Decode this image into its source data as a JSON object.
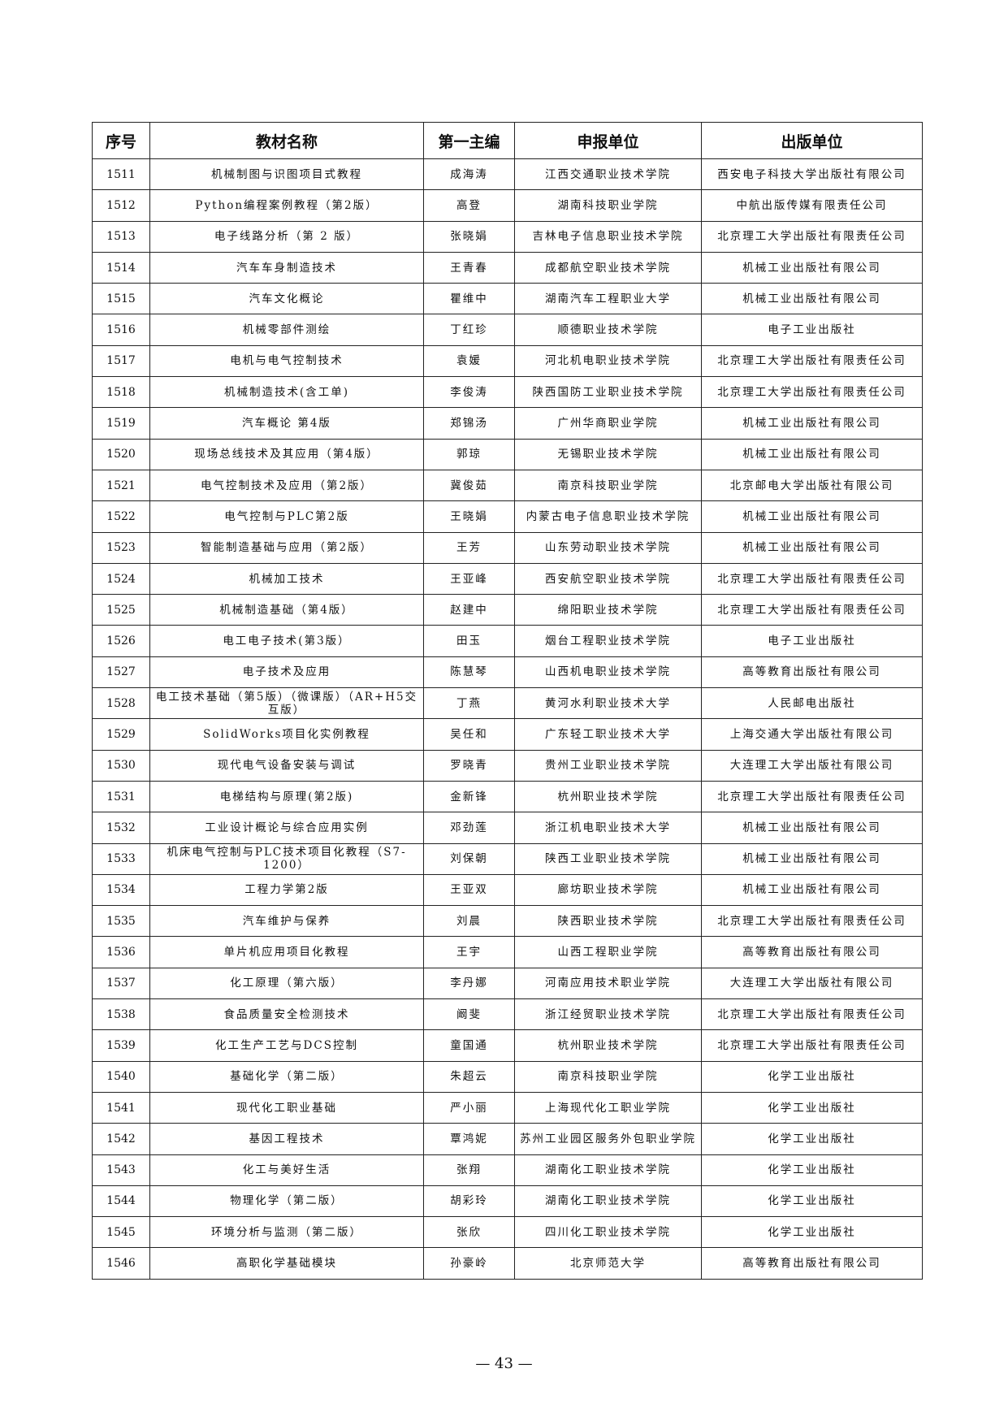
{
  "headers": [
    "序号",
    "教材名称",
    "第一主编",
    "申报单位",
    "出版单位"
  ],
  "rows": [
    [
      "1511",
      "机械制图与识图项目式教程",
      "成海涛",
      "江西交通职业技术学院",
      "西安电子科技大学出版社有限公司"
    ],
    [
      "1512",
      "Python编程案例教程（第2版）",
      "高登",
      "湖南科技职业学院",
      "中航出版传媒有限责任公司"
    ],
    [
      "1513",
      "电子线路分析（第 2 版）",
      "张晓娟",
      "吉林电子信息职业技术学院",
      "北京理工大学出版社有限责任公司"
    ],
    [
      "1514",
      "汽车车身制造技术",
      "王青春",
      "成都航空职业技术学院",
      "机械工业出版社有限公司"
    ],
    [
      "1515",
      "汽车文化概论",
      "瞿维中",
      "湖南汽车工程职业大学",
      "机械工业出版社有限公司"
    ],
    [
      "1516",
      "机械零部件测绘",
      "丁红珍",
      "顺德职业技术学院",
      "电子工业出版社"
    ],
    [
      "1517",
      "电机与电气控制技术",
      "袁媛",
      "河北机电职业技术学院",
      "北京理工大学出版社有限责任公司"
    ],
    [
      "1518",
      "机械制造技术(含工单)",
      "李俊涛",
      "陕西国防工业职业技术学院",
      "北京理工大学出版社有限责任公司"
    ],
    [
      "1519",
      "汽车概论 第4版",
      "郑锦汤",
      "广州华商职业学院",
      "机械工业出版社有限公司"
    ],
    [
      "1520",
      "现场总线技术及其应用（第4版）",
      "郭琼",
      "无锡职业技术学院",
      "机械工业出版社有限公司"
    ],
    [
      "1521",
      "电气控制技术及应用（第2版）",
      "冀俊茹",
      "南京科技职业学院",
      "北京邮电大学出版社有限公司"
    ],
    [
      "1522",
      "电气控制与PLC第2版",
      "王晓娟",
      "内蒙古电子信息职业技术学院",
      "机械工业出版社有限公司"
    ],
    [
      "1523",
      "智能制造基础与应用（第2版）",
      "王芳",
      "山东劳动职业技术学院",
      "机械工业出版社有限公司"
    ],
    [
      "1524",
      "机械加工技术",
      "王亚峰",
      "西安航空职业技术学院",
      "北京理工大学出版社有限责任公司"
    ],
    [
      "1525",
      "机械制造基础（第4版）",
      "赵建中",
      "绵阳职业技术学院",
      "北京理工大学出版社有限责任公司"
    ],
    [
      "1526",
      "电工电子技术(第3版）",
      "田玉",
      "烟台工程职业技术学院",
      "电子工业出版社"
    ],
    [
      "1527",
      "电子技术及应用",
      "陈慧琴",
      "山西机电职业技术学院",
      "高等教育出版社有限公司"
    ],
    [
      "1528",
      "电工技术基础（第5版）（微课版）（AR+H5交互版）",
      "丁燕",
      "黄河水利职业技术大学",
      "人民邮电出版社"
    ],
    [
      "1529",
      "SolidWorks项目化实例教程",
      "吴任和",
      "广东轻工职业技术大学",
      "上海交通大学出版社有限公司"
    ],
    [
      "1530",
      "现代电气设备安装与调试",
      "罗晓青",
      "贵州工业职业技术学院",
      "大连理工大学出版社有限公司"
    ],
    [
      "1531",
      "电梯结构与原理(第2版)",
      "金新锋",
      "杭州职业技术学院",
      "北京理工大学出版社有限责任公司"
    ],
    [
      "1532",
      "工业设计概论与综合应用实例",
      "邓劲莲",
      "浙江机电职业技术大学",
      "机械工业出版社有限公司"
    ],
    [
      "1533",
      "机床电气控制与PLC技术项目化教程（S7-1200）",
      "刘保朝",
      "陕西工业职业技术学院",
      "机械工业出版社有限公司"
    ],
    [
      "1534",
      "工程力学第2版",
      "王亚双",
      "廊坊职业技术学院",
      "机械工业出版社有限公司"
    ],
    [
      "1535",
      "汽车维护与保养",
      "刘晨",
      "陕西职业技术学院",
      "北京理工大学出版社有限责任公司"
    ],
    [
      "1536",
      "单片机应用项目化教程",
      "王宇",
      "山西工程职业学院",
      "高等教育出版社有限公司"
    ],
    [
      "1537",
      "化工原理（第六版）",
      "李丹娜",
      "河南应用技术职业学院",
      "大连理工大学出版社有限公司"
    ],
    [
      "1538",
      "食品质量安全检测技术",
      "阚斐",
      "浙江经贸职业技术学院",
      "北京理工大学出版社有限责任公司"
    ],
    [
      "1539",
      "化工生产工艺与DCS控制",
      "童国通",
      "杭州职业技术学院",
      "北京理工大学出版社有限责任公司"
    ],
    [
      "1540",
      "基础化学（第二版）",
      "朱超云",
      "南京科技职业学院",
      "化学工业出版社"
    ],
    [
      "1541",
      "现代化工职业基础",
      "严小丽",
      "上海现代化工职业学院",
      "化学工业出版社"
    ],
    [
      "1542",
      "基因工程技术",
      "覃鸿妮",
      "苏州工业园区服务外包职业学院",
      "化学工业出版社"
    ],
    [
      "1543",
      "化工与美好生活",
      "张翔",
      "湖南化工职业技术学院",
      "化学工业出版社"
    ],
    [
      "1544",
      "物理化学（第二版）",
      "胡彩玲",
      "湖南化工职业技术学院",
      "化学工业出版社"
    ],
    [
      "1545",
      "环境分析与监测（第二版）",
      "张欣",
      "四川化工职业技术学院",
      "化学工业出版社"
    ],
    [
      "1546",
      "高职化学基础模块",
      "孙豪岭",
      "北京师范大学",
      "高等教育出版社有限公司"
    ]
  ],
  "page_number": "— 43 —"
}
